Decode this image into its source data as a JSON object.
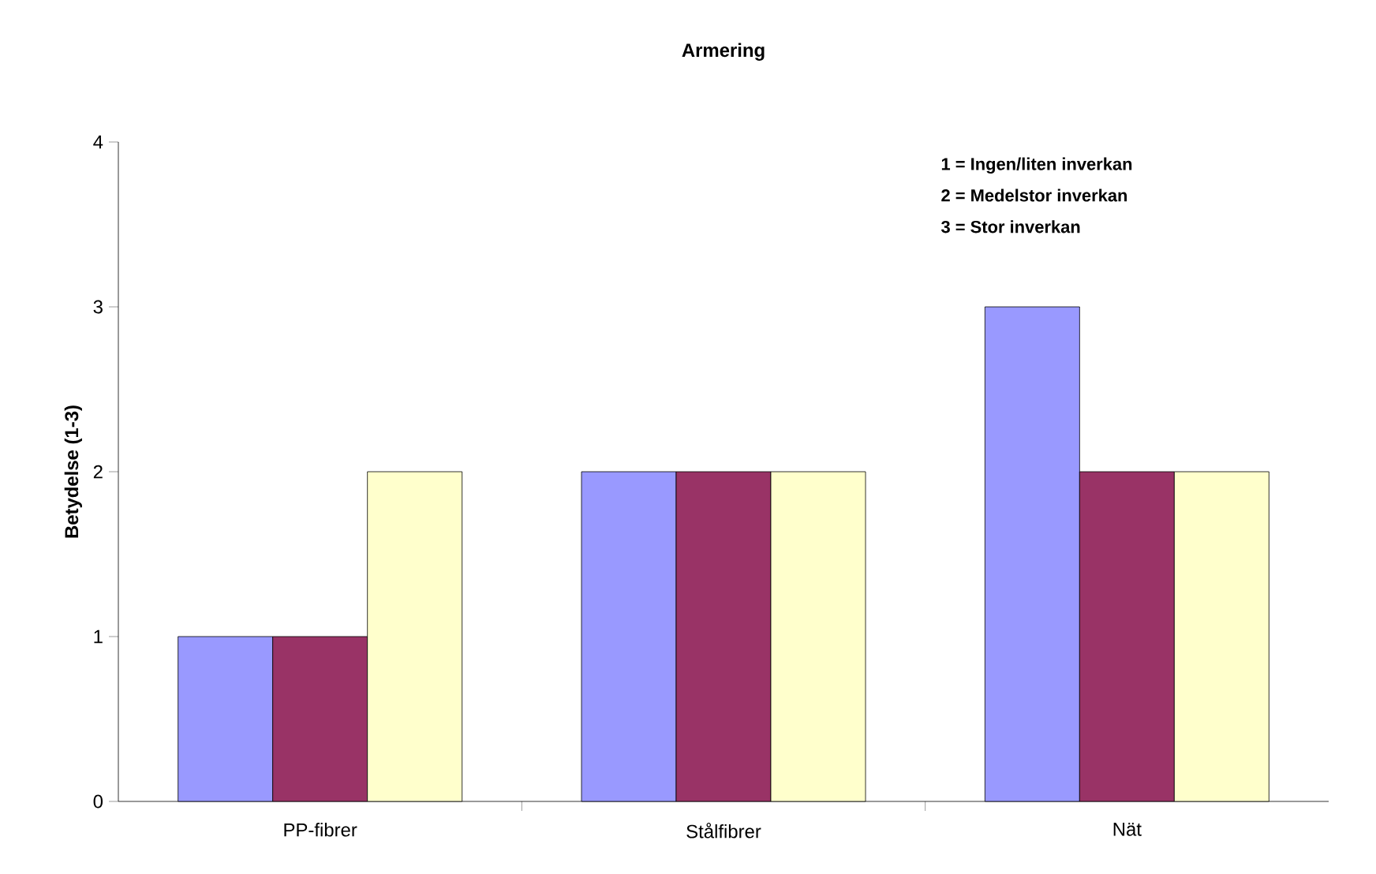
{
  "chart_data": {
    "type": "bar",
    "title": "Armering",
    "ylabel": "Betydelse (1-3)",
    "categories": [
      "PP-fibrer",
      "Stålfibrer",
      "Nät"
    ],
    "series": [
      {
        "color": "#9999ff",
        "values": [
          1,
          2,
          3
        ]
      },
      {
        "color": "#993366",
        "values": [
          1,
          2,
          2
        ]
      },
      {
        "color": "#ffffcc",
        "values": [
          2,
          2,
          2
        ]
      }
    ],
    "ylim": [
      0,
      4
    ],
    "yticks": [
      0,
      1,
      2,
      3,
      4
    ],
    "annotations": [
      "1 = Ingen/liten inverkan",
      "2 = Medelstor inverkan",
      "3 = Stor inverkan"
    ]
  }
}
